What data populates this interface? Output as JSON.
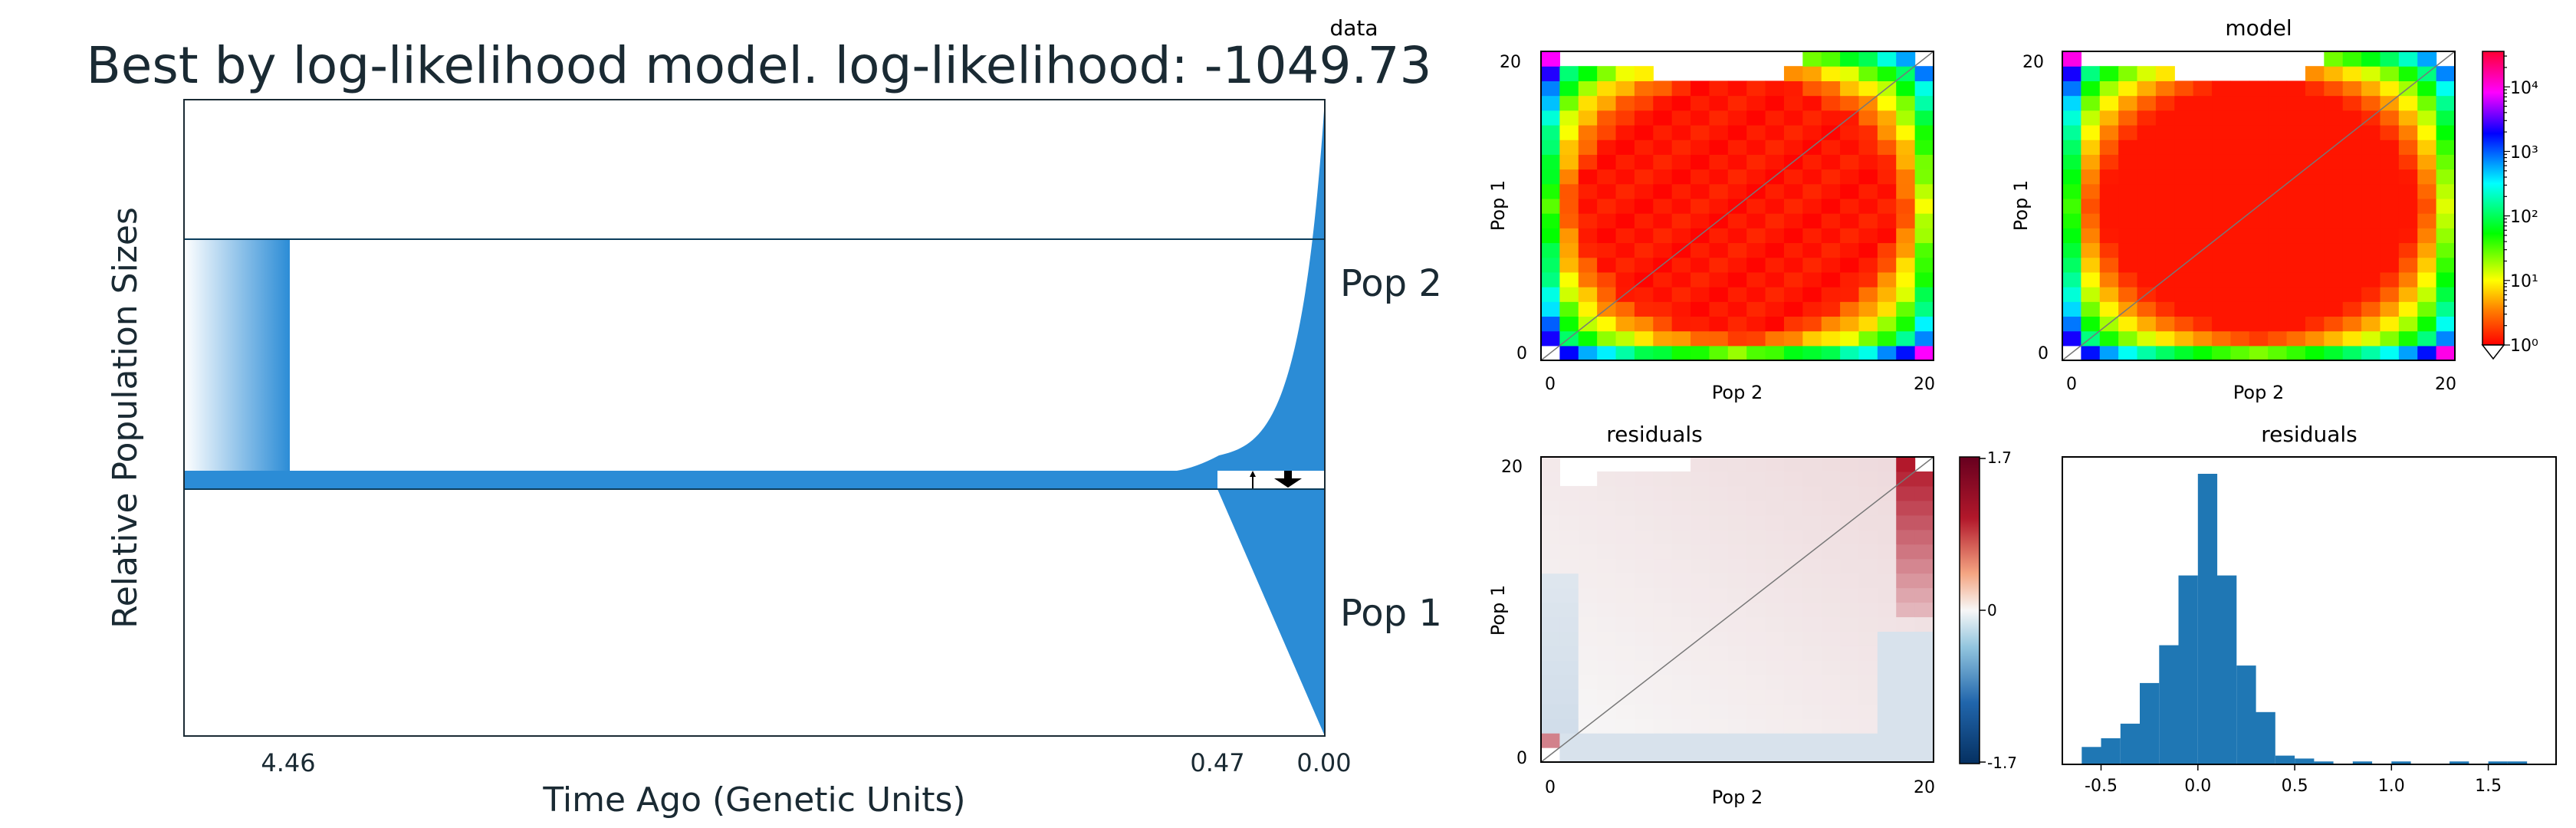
{
  "chart_data": [
    {
      "type": "area",
      "title": "Best by log-likelihood model. log-likelihood: -1049.73",
      "xlabel": "Time Ago (Genetic Units)",
      "ylabel": "Relative Population Sizes",
      "x_ticks": [
        {
          "value": 4.46,
          "label": "4.46"
        },
        {
          "value": 0.47,
          "label": "0.47"
        },
        {
          "value": 0.0,
          "label": "0.00"
        }
      ],
      "x_direction": "time decreasing to the right (present on the right)",
      "series": [
        {
          "name": "Pop 2",
          "description": "split at 4.46, constant small size, then exponential growth after 0.47"
        },
        {
          "name": "Pop 1",
          "description": "split at 4.46, constant small size, then linear growth after 0.47"
        }
      ],
      "migration_arrows": "small arrow Pop 1 to Pop 2 and large arrow Pop 2 to Pop 1 between 0.47 and 0.00",
      "color": "#2b8cd6"
    },
    {
      "type": "heatmap",
      "title": "data",
      "xlabel": "Pop 2",
      "ylabel": "Pop 1",
      "x_ticks": [
        "0",
        "20"
      ],
      "y_ticks": [
        "0",
        "20"
      ],
      "grid_size": 21,
      "scale": "log",
      "colormap": "rainbow (red at 1e0 to magenta at 1e4)"
    },
    {
      "type": "heatmap",
      "title": "model",
      "xlabel": "Pop 2",
      "ylabel": "Pop 1",
      "x_ticks": [
        "0",
        "20"
      ],
      "y_ticks": [
        "0",
        "20"
      ],
      "grid_size": 21,
      "scale": "log",
      "colorbar": {
        "ticks": [
          "10⁰",
          "10¹",
          "10²",
          "10³",
          "10⁴"
        ],
        "scale": "log"
      }
    },
    {
      "type": "heatmap",
      "title": "residuals",
      "xlabel": "Pop 2",
      "ylabel": "Pop 1",
      "x_ticks": [
        "0",
        "20"
      ],
      "y_ticks": [
        "0",
        "20"
      ],
      "grid_size": 21,
      "colormap": "diverging blue-white-red",
      "colorbar": {
        "ticks": [
          "1.7",
          "0",
          "-1.7"
        ],
        "range": [
          -1.7,
          1.7
        ]
      }
    },
    {
      "type": "bar",
      "title": "residuals",
      "x_ticks": [
        "-0.5",
        "0.0",
        "0.5",
        "1.0",
        "1.5"
      ],
      "xlim": [
        -0.7,
        1.85
      ],
      "bin_width": 0.1,
      "bins_left_edges": [
        -0.6,
        -0.5,
        -0.4,
        -0.3,
        -0.2,
        -0.1,
        0.0,
        0.1,
        0.2,
        0.3,
        0.4,
        0.5,
        0.6,
        0.7,
        0.8,
        0.9,
        1.0,
        1.1,
        1.2,
        1.3,
        1.4,
        1.5,
        1.6,
        1.7
      ],
      "counts": [
        6,
        9,
        14,
        28,
        41,
        65,
        100,
        65,
        34,
        18,
        3,
        2,
        1,
        0,
        1,
        0,
        1,
        0,
        0,
        1,
        0,
        1,
        1,
        0
      ],
      "color": "#1f77b4"
    }
  ]
}
